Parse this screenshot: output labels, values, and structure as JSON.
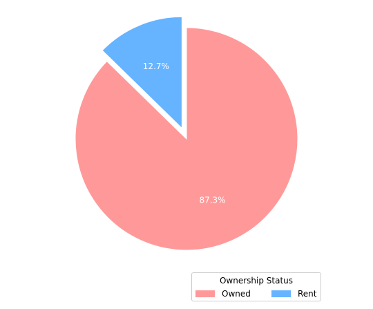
{
  "chart_data": {
    "type": "pie",
    "slices": [
      {
        "label": "Owned",
        "value": 87.3,
        "pct_label": "87.3%",
        "color": "#ff9999",
        "explode": false
      },
      {
        "label": "Rent",
        "value": 12.7,
        "pct_label": "12.7%",
        "color": "#66b3ff",
        "explode": true
      }
    ],
    "legend": {
      "title": "Ownership Status",
      "placement": "bottom-right",
      "entries": [
        "Owned",
        "Rent"
      ]
    },
    "start_angle": "12 o'clock",
    "direction": "clockwise"
  }
}
